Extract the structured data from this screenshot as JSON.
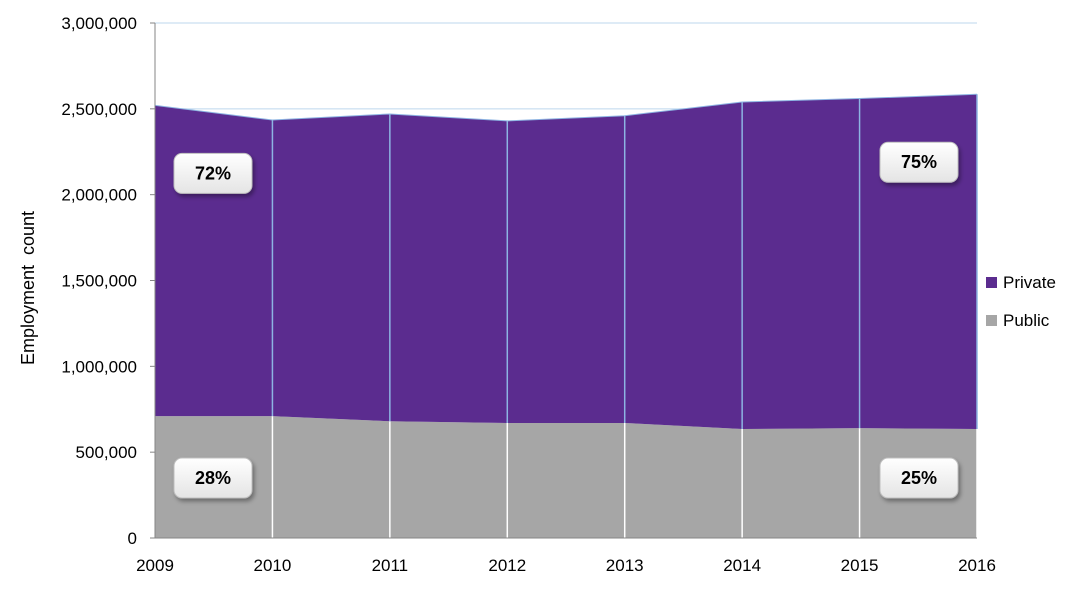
{
  "chart_data": {
    "type": "area",
    "stacked": true,
    "x": [
      "2009",
      "2010",
      "2011",
      "2012",
      "2013",
      "2014",
      "2015",
      "2016"
    ],
    "series": [
      {
        "name": "Public",
        "color": "#a6a6a6",
        "values": [
          710000,
          710000,
          680000,
          670000,
          670000,
          635000,
          640000,
          635000
        ]
      },
      {
        "name": "Private",
        "color": "#5b2c8f",
        "values": [
          1810000,
          1725000,
          1790000,
          1760000,
          1790000,
          1905000,
          1920000,
          1950000
        ]
      }
    ],
    "ylabel": "Employment  count",
    "ylim": [
      0,
      3000000
    ],
    "yticks": [
      "0",
      "500,000",
      "1,000,000",
      "1,500,000",
      "2,000,000",
      "2,500,000",
      "3,000,000"
    ],
    "legend_position": "right",
    "callouts": [
      {
        "text": "72%",
        "series": "Private",
        "year": "2009"
      },
      {
        "text": "75%",
        "series": "Private",
        "year": "2016"
      },
      {
        "text": "28%",
        "series": "Public",
        "year": "2009"
      },
      {
        "text": "25%",
        "series": "Public",
        "year": "2016"
      }
    ]
  }
}
